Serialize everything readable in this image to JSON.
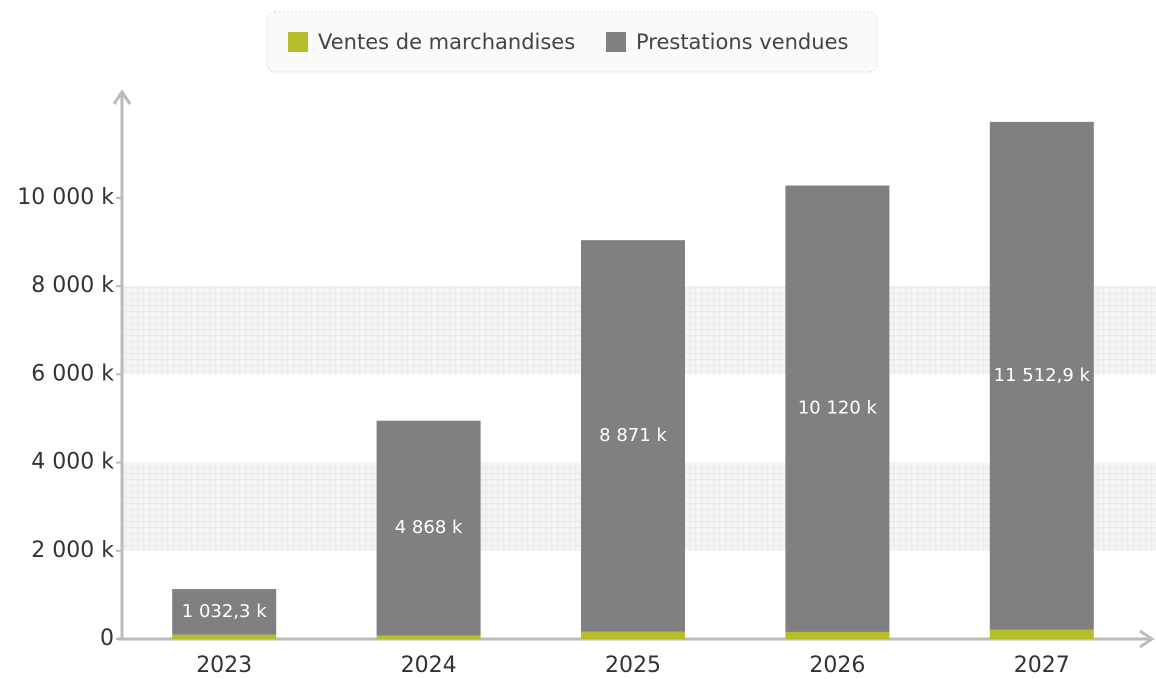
{
  "chart_data": {
    "type": "stacked_bar",
    "categories": [
      "2023",
      "2024",
      "2025",
      "2026",
      "2027"
    ],
    "series": [
      {
        "name": "Ventes de marchandises",
        "color": "#b5bd2a",
        "values": [
          100,
          80,
          170,
          160,
          210
        ]
      },
      {
        "name": "Prestations vendues",
        "color": "#808080",
        "values": [
          1032.3,
          4868,
          8871,
          10120,
          11512.9
        ],
        "value_labels": [
          "1 032,3 k",
          "4 868 k",
          "8 871 k",
          "10 120 k",
          "11 512,9 k"
        ]
      }
    ],
    "ylim": [
      0,
      12400
    ],
    "yticks": [
      0,
      {
        "value": 2000,
        "label": "2 000 k"
      },
      {
        "value": 4000,
        "label": "4 000 k"
      },
      {
        "value": 6000,
        "label": "6 000 k"
      },
      {
        "value": 8000,
        "label": "8 000 k"
      },
      {
        "value": 10000,
        "label": "10 000 k"
      }
    ],
    "legend": "top"
  }
}
